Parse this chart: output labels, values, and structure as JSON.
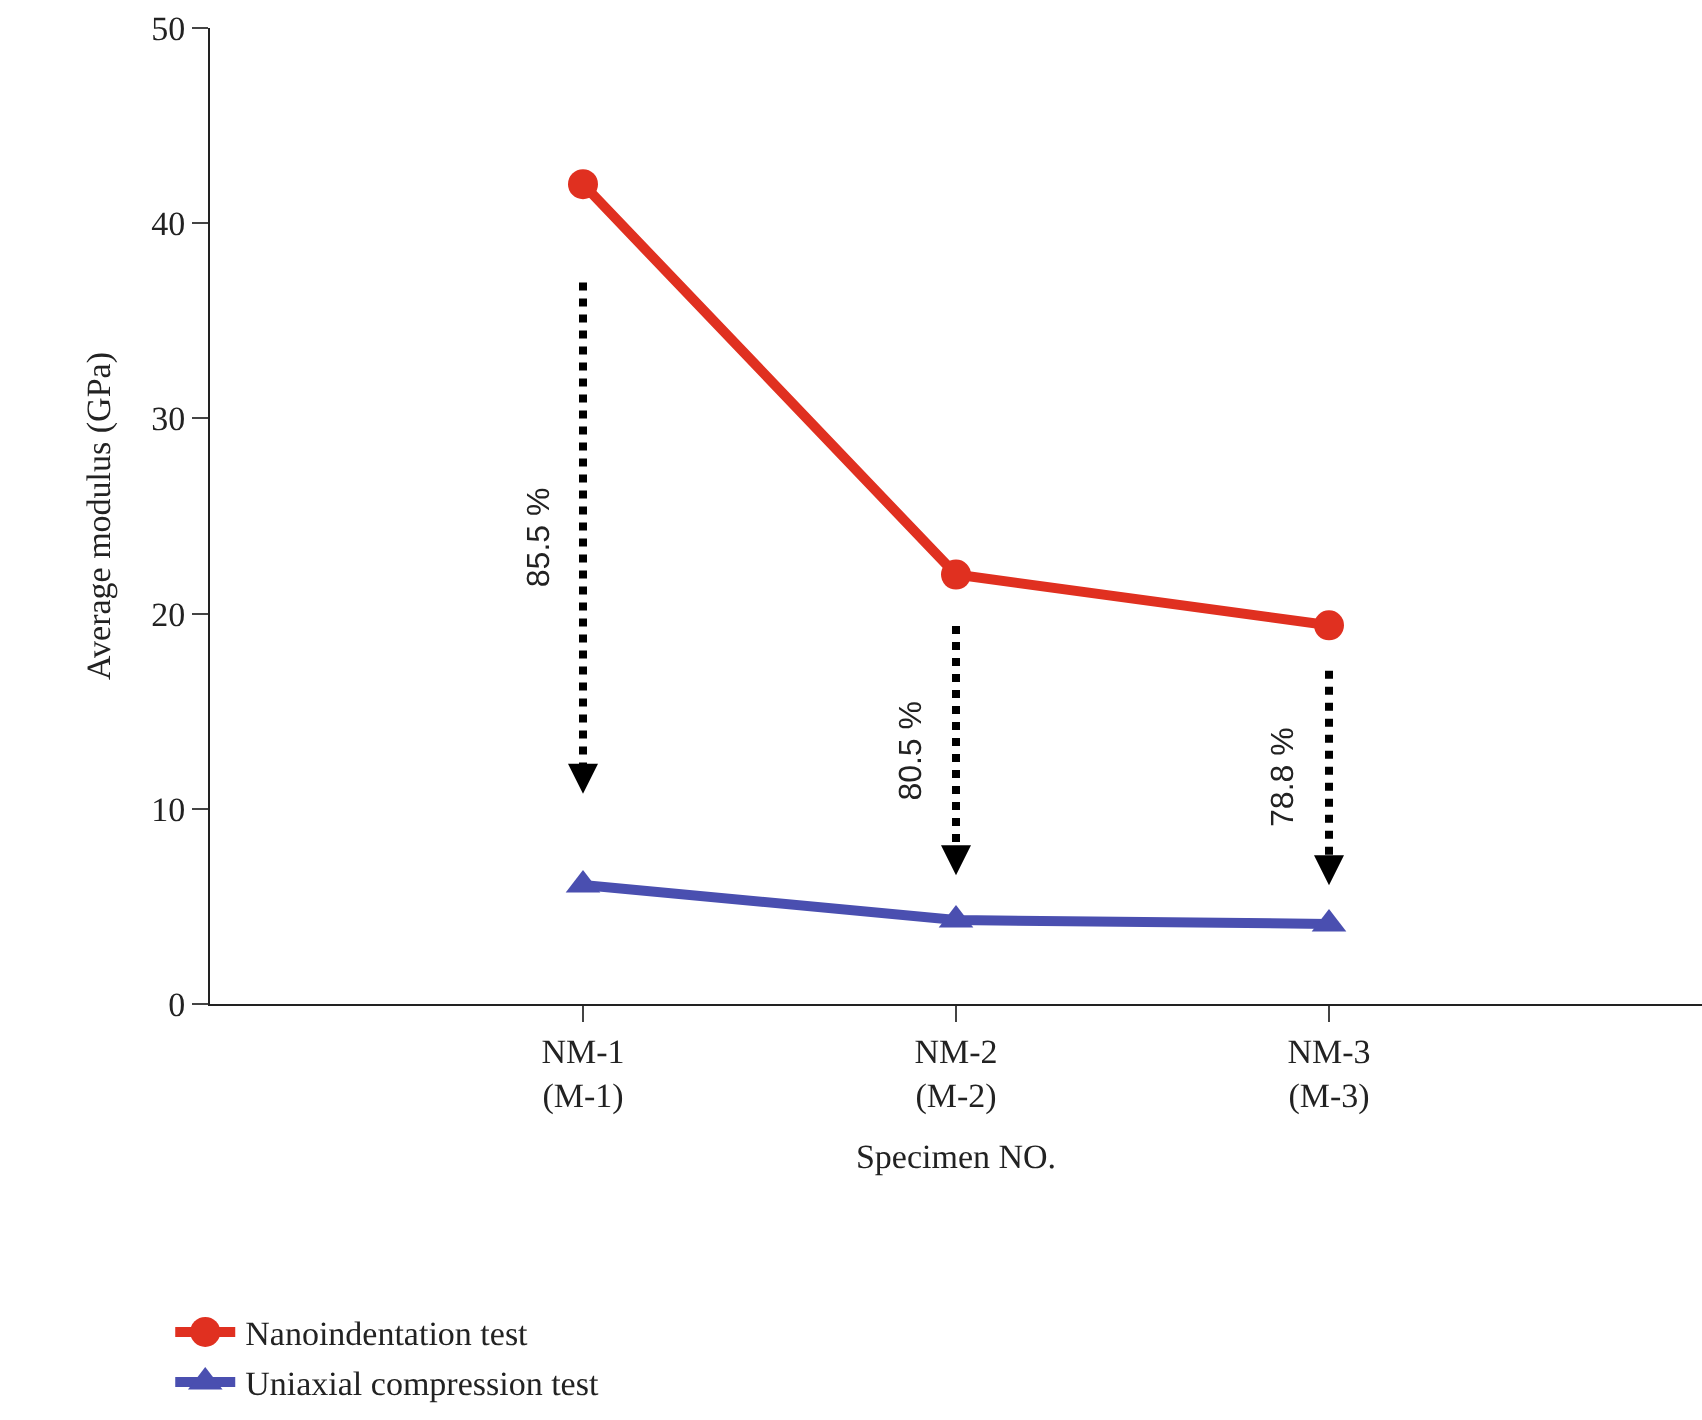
{
  "chart_data": {
    "type": "line",
    "xlabel": "Specimen NO.",
    "ylabel": "Average modulus (GPa)",
    "categories": [
      "NM-1\n(M-1)",
      "NM-2\n(M-2)",
      "NM-3\n(M-3)"
    ],
    "series": [
      {
        "name": "Nanoindentation test",
        "color": "#e03020",
        "marker": "circle",
        "values": [
          42.0,
          22.0,
          19.4
        ]
      },
      {
        "name": "Uniaxial compression test",
        "color": "#4a4fb0",
        "marker": "triangle",
        "values": [
          6.1,
          4.3,
          4.1
        ]
      }
    ],
    "ylim": [
      0,
      50
    ],
    "yticks": [
      0,
      10,
      20,
      30,
      40,
      50
    ],
    "legend": "bottom left",
    "line_style": "solid",
    "annotations": [
      "85.5 %",
      "80.5 %",
      "78.8 %"
    ]
  }
}
